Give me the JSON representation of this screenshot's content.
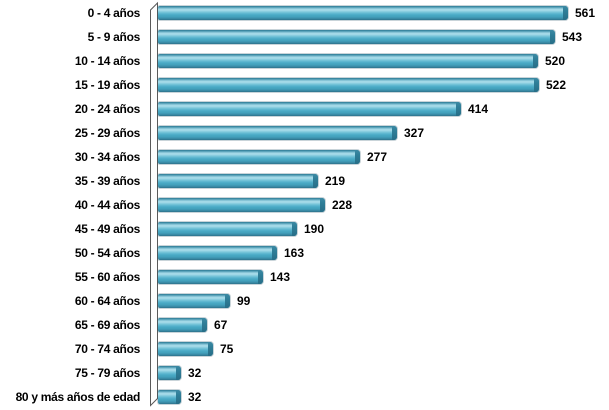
{
  "chart_data": {
    "type": "bar",
    "orientation": "horizontal",
    "title": "",
    "xlabel": "",
    "ylabel": "",
    "grid": false,
    "legend": false,
    "xlim": [
      0,
      575
    ],
    "categories": [
      "0 - 4 años",
      "5 - 9 años",
      "10 - 14 años",
      "15 - 19 años",
      "20 - 24 años",
      "25 - 29 años",
      "30 - 34 años",
      "35 - 39 años",
      "40 - 44 años",
      "45 - 49 años",
      "50 - 54 años",
      "55 - 60 años",
      "60 - 64 años",
      "65 - 69 años",
      "70 - 74 años",
      "75 - 79 años",
      "80 y más años de edad"
    ],
    "values": [
      561,
      543,
      520,
      522,
      414,
      327,
      277,
      219,
      228,
      190,
      163,
      143,
      99,
      67,
      75,
      32,
      32
    ],
    "colors": {
      "bar_main": "#4BACC6",
      "bar_highlight": "#ABDEEB",
      "bar_shadow": "#2A6F88",
      "bar_end_cap": "#2F7E98",
      "axis_wall_fill": "#FDFDFD",
      "axis_wall_stroke": "#595959",
      "label_text": "#000000",
      "background": "#FFFFFF"
    }
  }
}
